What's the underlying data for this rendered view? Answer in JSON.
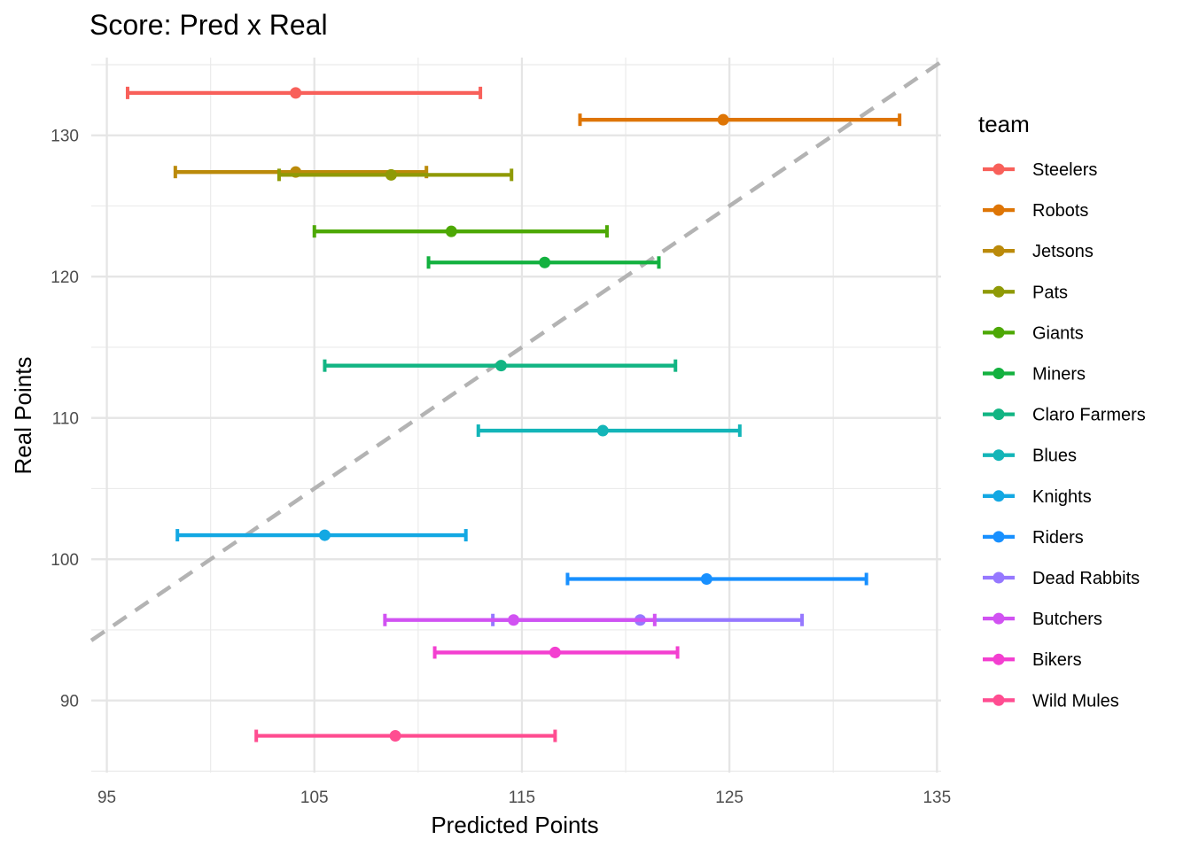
{
  "chart_data": {
    "type": "errorbar-scatter",
    "title": "Score: Pred x Real",
    "xlabel": "Predicted Points",
    "ylabel": "Real Points",
    "xlim": [
      94.25,
      135.2
    ],
    "ylim": [
      84.9,
      135.5
    ],
    "xticks": [
      95,
      105,
      115,
      125,
      135
    ],
    "yticks": [
      90,
      100,
      110,
      120,
      130
    ],
    "grid": true,
    "reference_line": {
      "type": "y = x",
      "style": "dashed",
      "color": "#b3b3b3"
    },
    "legend": {
      "title": "team",
      "placement": "right"
    },
    "series": [
      {
        "name": "Steelers",
        "color": "#F8605A",
        "x": 104.1,
        "y": 133.0,
        "xmin": 96.0,
        "xmax": 113.0
      },
      {
        "name": "Robots",
        "color": "#DE7505",
        "x": 124.7,
        "y": 131.1,
        "xmin": 117.8,
        "xmax": 133.2
      },
      {
        "name": "Jetsons",
        "color": "#BB8A0A",
        "x": 104.1,
        "y": 127.4,
        "xmin": 98.3,
        "xmax": 110.4
      },
      {
        "name": "Pats",
        "color": "#8F9A06",
        "x": 108.7,
        "y": 127.2,
        "xmin": 103.3,
        "xmax": 114.5
      },
      {
        "name": "Giants",
        "color": "#4DA805",
        "x": 111.6,
        "y": 123.2,
        "xmin": 105.0,
        "xmax": 119.1
      },
      {
        "name": "Miners",
        "color": "#13B13F",
        "x": 116.1,
        "y": 121.0,
        "xmin": 110.5,
        "xmax": 121.6
      },
      {
        "name": "Claro Farmers",
        "color": "#12B583",
        "x": 114.0,
        "y": 113.7,
        "xmin": 105.5,
        "xmax": 122.4
      },
      {
        "name": "Blues",
        "color": "#13B5B8",
        "x": 118.9,
        "y": 109.1,
        "xmin": 112.9,
        "xmax": 125.5
      },
      {
        "name": "Knights",
        "color": "#13A8E3",
        "x": 105.5,
        "y": 101.7,
        "xmin": 98.4,
        "xmax": 112.3
      },
      {
        "name": "Riders",
        "color": "#1890FF",
        "x": 123.9,
        "y": 98.6,
        "xmin": 117.2,
        "xmax": 131.6
      },
      {
        "name": "Dead Rabbits",
        "color": "#9678FF",
        "x": 120.7,
        "y": 95.7,
        "xmin": 113.6,
        "xmax": 128.5
      },
      {
        "name": "Butchers",
        "color": "#D152F2",
        "x": 114.6,
        "y": 95.7,
        "xmin": 108.4,
        "xmax": 121.4
      },
      {
        "name": "Bikers",
        "color": "#F33FD0",
        "x": 116.6,
        "y": 93.4,
        "xmin": 110.8,
        "xmax": 122.5
      },
      {
        "name": "Wild Mules",
        "color": "#FF4D91",
        "x": 108.9,
        "y": 87.5,
        "xmin": 102.2,
        "xmax": 116.6
      }
    ]
  }
}
